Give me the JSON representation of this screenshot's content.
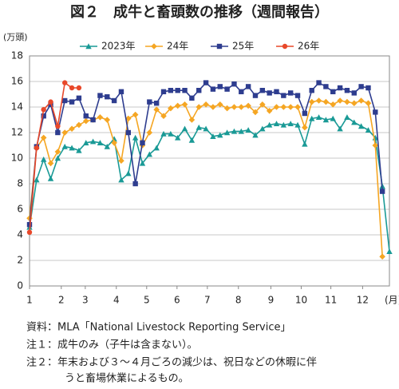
{
  "chart_data": {
    "type": "line",
    "title": "図２　成牛と畜頭数の推移（週間報告）",
    "y_label": "(万頭)",
    "x_label": "(月)",
    "x": [
      1,
      2,
      3,
      4,
      5,
      6,
      7,
      8,
      9,
      10,
      11,
      12,
      13,
      14,
      15,
      16,
      17,
      18,
      19,
      20,
      21,
      22,
      23,
      24,
      25,
      26,
      27,
      28,
      29,
      30,
      31,
      32,
      33,
      34,
      35,
      36,
      37,
      38,
      39,
      40,
      41,
      42,
      43,
      44,
      45,
      46,
      47,
      48,
      49,
      50,
      51,
      52
    ],
    "xlim": [
      1,
      52
    ],
    "xticks": [
      {
        "value": 1,
        "label": "1"
      },
      {
        "value": 5.5,
        "label": "2"
      },
      {
        "value": 8.9,
        "label": "3"
      },
      {
        "value": 13.3,
        "label": "4"
      },
      {
        "value": 17.6,
        "label": "5"
      },
      {
        "value": 21.9,
        "label": "6"
      },
      {
        "value": 26.2,
        "label": "7"
      },
      {
        "value": 30.6,
        "label": "8"
      },
      {
        "value": 35.2,
        "label": "9"
      },
      {
        "value": 39.5,
        "label": "10"
      },
      {
        "value": 43.7,
        "label": "11"
      },
      {
        "value": 48.2,
        "label": "12"
      }
    ],
    "ylim": [
      0,
      18
    ],
    "yticks": [
      0,
      2,
      4,
      6,
      8,
      10,
      12,
      14,
      16,
      18
    ],
    "grid": true,
    "legend": "top",
    "series": [
      {
        "name": "2023年",
        "color": "#1a9a96",
        "marker": "triangle",
        "values": [
          4.6,
          8.3,
          9.9,
          8.4,
          10.0,
          10.9,
          10.8,
          10.6,
          11.2,
          11.3,
          11.2,
          10.9,
          11.5,
          8.3,
          8.8,
          11.6,
          9.6,
          10.3,
          10.8,
          11.9,
          11.9,
          11.6,
          12.3,
          11.4,
          12.4,
          12.3,
          11.7,
          11.8,
          12.0,
          12.1,
          12.1,
          12.2,
          11.8,
          12.3,
          12.6,
          12.7,
          12.6,
          12.7,
          12.6,
          11.1,
          13.1,
          13.2,
          13.0,
          13.1,
          12.3,
          13.2,
          12.8,
          12.5,
          12.2,
          11.6,
          7.8,
          2.7
        ]
      },
      {
        "name": "24年",
        "color": "#f5a623",
        "marker": "diamond",
        "values": [
          5.3,
          10.8,
          11.6,
          9.6,
          10.5,
          12.0,
          12.3,
          12.6,
          12.9,
          13.0,
          13.2,
          13.0,
          11.2,
          9.8,
          13.1,
          13.4,
          11.0,
          12.0,
          13.8,
          13.3,
          13.9,
          14.1,
          14.2,
          13.0,
          14.0,
          14.2,
          14.0,
          14.2,
          13.9,
          14.0,
          14.0,
          14.1,
          13.6,
          14.2,
          13.7,
          14.0,
          14.0,
          14.0,
          14.0,
          12.4,
          14.4,
          14.5,
          14.4,
          14.2,
          14.5,
          14.4,
          14.3,
          14.5,
          14.3,
          11.0,
          2.3,
          null
        ]
      },
      {
        "name": "25年",
        "color": "#2e3d8f",
        "marker": "square",
        "values": [
          4.8,
          10.9,
          13.3,
          14.2,
          12.0,
          14.5,
          14.4,
          14.7,
          13.3,
          13.0,
          14.9,
          14.8,
          14.5,
          15.2,
          12.0,
          8.0,
          11.2,
          14.4,
          14.3,
          15.2,
          15.3,
          15.3,
          15.3,
          14.7,
          15.3,
          15.9,
          15.4,
          15.6,
          15.4,
          15.8,
          15.2,
          15.6,
          14.9,
          15.3,
          15.1,
          15.2,
          14.9,
          15.1,
          14.9,
          13.5,
          15.3,
          15.9,
          15.6,
          15.2,
          15.5,
          15.3,
          15.1,
          15.6,
          15.5,
          13.6,
          7.4,
          null
        ]
      },
      {
        "name": "26年",
        "color": "#e8482a",
        "marker": "circle",
        "values": [
          4.2,
          10.8,
          13.8,
          14.4,
          12.5,
          15.9,
          15.5,
          15.5,
          null,
          null,
          null,
          null,
          null,
          null,
          null,
          null,
          null,
          null,
          null,
          null,
          null,
          null,
          null,
          null,
          null,
          null,
          null,
          null,
          null,
          null,
          null,
          null,
          null,
          null,
          null,
          null,
          null,
          null,
          null,
          null,
          null,
          null,
          null,
          null,
          null,
          null,
          null,
          null,
          null,
          null,
          null,
          null
        ]
      }
    ],
    "notes": [
      "資料：MLA「National Livestock Reporting Service」",
      "注１：成牛のみ（子牛は含まない）。",
      "注２：年末および３～４月ごろの減少は、祝日などの休暇に伴",
      "うと畜場休業によるもの。"
    ]
  }
}
